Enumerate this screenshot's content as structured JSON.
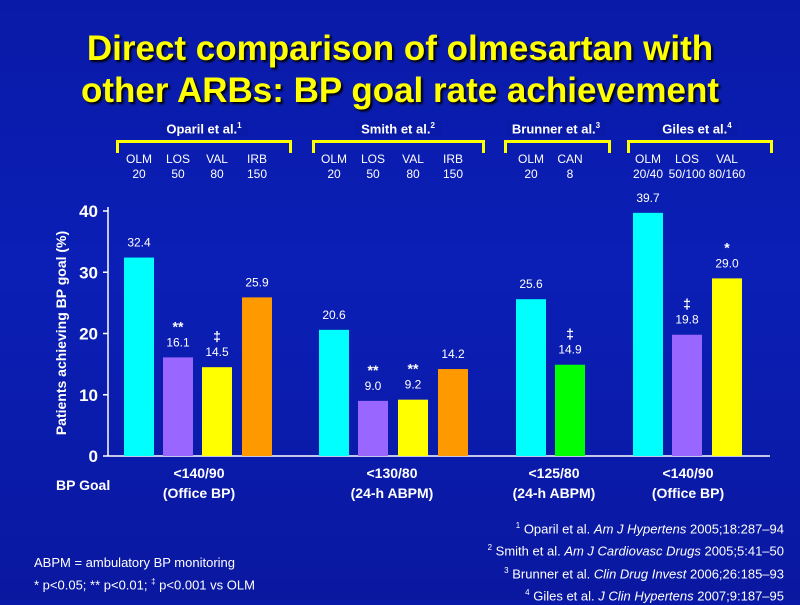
{
  "title": {
    "line1": "Direct comparison of olmesartan with",
    "line2": "other ARBs: BP goal rate achievement"
  },
  "studies": [
    {
      "name": "Oparil et al.",
      "ref": "1"
    },
    {
      "name": "Smith et al.",
      "ref": "2"
    },
    {
      "name": "Brunner et al.",
      "ref": "3"
    },
    {
      "name": "Giles et al.",
      "ref": "4"
    }
  ],
  "chart_data": {
    "type": "bar",
    "ylabel": "Patients achieving BP goal (%)",
    "ylim": [
      0,
      40
    ],
    "yticks": [
      "0",
      "10",
      "20",
      "30",
      "40"
    ],
    "grid": false,
    "groups": [
      {
        "study": "Oparil et al.",
        "goal": [
          "<140/90",
          "(Office BP)"
        ],
        "bars": [
          {
            "drug": "OLM",
            "dose": "20",
            "value": 32.4,
            "label": "32.4",
            "sig": "",
            "color": "#00ffff"
          },
          {
            "drug": "LOS",
            "dose": "50",
            "value": 16.1,
            "label": "16.1",
            "sig": "**",
            "color": "#9966ff"
          },
          {
            "drug": "VAL",
            "dose": "80",
            "value": 14.5,
            "label": "14.5",
            "sig": "‡",
            "color": "#ffff00"
          },
          {
            "drug": "IRB",
            "dose": "150",
            "value": 25.9,
            "label": "25.9",
            "sig": "",
            "color": "#ff9900"
          }
        ]
      },
      {
        "study": "Smith et al.",
        "goal": [
          "<130/80",
          "(24-h ABPM)"
        ],
        "bars": [
          {
            "drug": "OLM",
            "dose": "20",
            "value": 20.6,
            "label": "20.6",
            "sig": "",
            "color": "#00ffff"
          },
          {
            "drug": "LOS",
            "dose": "50",
            "value": 9.0,
            "label": "9.0",
            "sig": "**",
            "color": "#9966ff"
          },
          {
            "drug": "VAL",
            "dose": "80",
            "value": 9.2,
            "label": "9.2",
            "sig": "**",
            "color": "#ffff00"
          },
          {
            "drug": "IRB",
            "dose": "150",
            "value": 14.2,
            "label": "14.2",
            "sig": "",
            "color": "#ff9900"
          }
        ]
      },
      {
        "study": "Brunner et al.",
        "goal": [
          "<125/80",
          "(24-h ABPM)"
        ],
        "bars": [
          {
            "drug": "OLM",
            "dose": "20",
            "value": 25.6,
            "label": "25.6",
            "sig": "",
            "color": "#00ffff"
          },
          {
            "drug": "CAN",
            "dose": "8",
            "value": 14.9,
            "label": "14.9",
            "sig": "‡",
            "color": "#00ff00"
          }
        ]
      },
      {
        "study": "Giles et al.",
        "goal": [
          "<140/90",
          "(Office BP)"
        ],
        "bars": [
          {
            "drug": "OLM",
            "dose": "20/40",
            "value": 39.7,
            "label": "39.7",
            "sig": "",
            "color": "#00ffff"
          },
          {
            "drug": "LOS",
            "dose": "50/100",
            "value": 19.8,
            "label": "19.8",
            "sig": "‡",
            "color": "#9966ff"
          },
          {
            "drug": "VAL",
            "dose": "80/160",
            "value": 29.0,
            "label": "29.0",
            "sig": "*",
            "color": "#ffff00"
          }
        ]
      }
    ]
  },
  "goal_row_label": "BP Goal",
  "notes": {
    "abbrev": "ABPM = ambulatory BP monitoring",
    "p1": "* p<0.05; ** p<0.01; ",
    "p_sym": "‡",
    "p2": " p<0.001 vs OLM"
  },
  "references": [
    {
      "num": "1",
      "pre": "Oparil et al. ",
      "journal": "Am J Hypertens",
      "post": " 2005;18:287–94"
    },
    {
      "num": "2",
      "pre": "Smith et al. ",
      "journal": "Am J Cardiovasc Drugs",
      "post": " 2005;5:41–50"
    },
    {
      "num": "3",
      "pre": "Brunner et al. ",
      "journal": "Clin Drug Invest",
      "post": " 2006;26:185–93"
    },
    {
      "num": "4",
      "pre": "Giles et al. ",
      "journal": "J Clin Hypertens",
      "post": " 2007;9:187–95"
    }
  ]
}
